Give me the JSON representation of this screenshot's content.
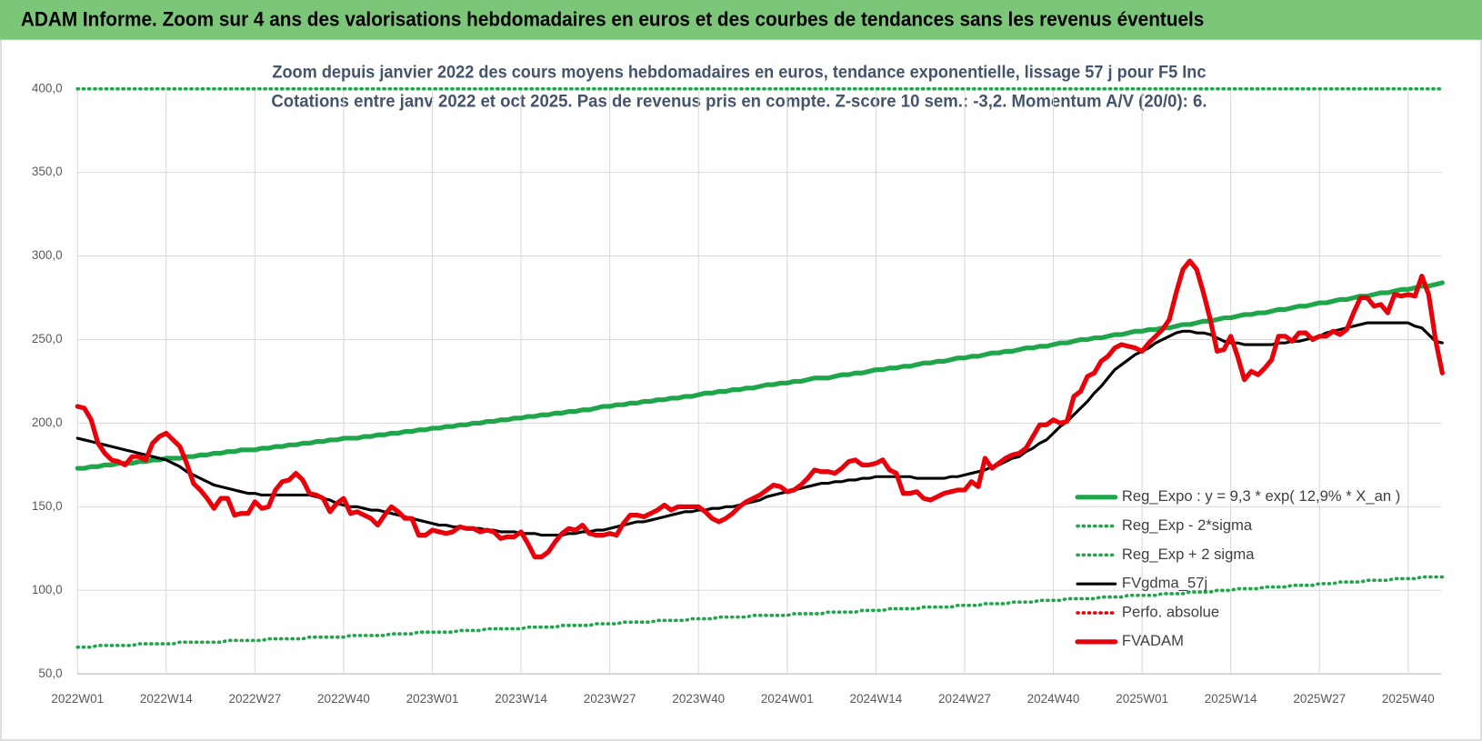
{
  "header": {
    "title": "ADAM Informe. Zoom sur 4 ans des valorisations hebdomadaires en euros et des courbes de tendances sans les revenus éventuels"
  },
  "chart_data": {
    "type": "line",
    "title": "Zoom depuis janvier 2022 des cours moyens hebdomadaires en euros, tendance exponentielle, lissage 57 j pour F5 Inc",
    "subtitle": "Cotations entre janv 2022 et oct 2025. Pas de revenus pris en compte. Z-score 10 sem.: -3,2.  Momentum A/V (20/0): 6.",
    "grid": true,
    "legend": "lower right",
    "ylim": [
      50,
      400
    ],
    "yticks": [
      {
        "value": 50,
        "label": "50,0"
      },
      {
        "value": 100,
        "label": "100,0"
      },
      {
        "value": 150,
        "label": "150,0"
      },
      {
        "value": 200,
        "label": "200,0"
      },
      {
        "value": 250,
        "label": "250,0"
      },
      {
        "value": 300,
        "label": "300,0"
      },
      {
        "value": 350,
        "label": "350,0"
      },
      {
        "value": 400,
        "label": "400,0"
      }
    ],
    "categories": [
      "2022W01",
      null,
      null,
      null,
      null,
      null,
      null,
      null,
      null,
      null,
      null,
      null,
      null,
      "2022W14",
      null,
      null,
      null,
      null,
      null,
      null,
      null,
      null,
      null,
      null,
      null,
      null,
      "2022W27",
      null,
      null,
      null,
      null,
      null,
      null,
      null,
      null,
      null,
      null,
      null,
      null,
      "2022W40",
      null,
      null,
      null,
      null,
      null,
      null,
      null,
      null,
      null,
      null,
      null,
      null,
      "2023W01",
      null,
      null,
      null,
      null,
      null,
      null,
      null,
      null,
      null,
      null,
      null,
      null,
      "2023W14",
      null,
      null,
      null,
      null,
      null,
      null,
      null,
      null,
      null,
      null,
      null,
      null,
      "2023W27",
      null,
      null,
      null,
      null,
      null,
      null,
      null,
      null,
      null,
      null,
      null,
      null,
      "2023W40",
      null,
      null,
      null,
      null,
      null,
      null,
      null,
      null,
      null,
      null,
      null,
      null,
      "2024W01",
      null,
      null,
      null,
      null,
      null,
      null,
      null,
      null,
      null,
      null,
      null,
      null,
      "2024W14",
      null,
      null,
      null,
      null,
      null,
      null,
      null,
      null,
      null,
      null,
      null,
      null,
      "2024W27",
      null,
      null,
      null,
      null,
      null,
      null,
      null,
      null,
      null,
      null,
      null,
      null,
      "2024W40",
      null,
      null,
      null,
      null,
      null,
      null,
      null,
      null,
      null,
      null,
      null,
      null,
      "2025W01",
      null,
      null,
      null,
      null,
      null,
      null,
      null,
      null,
      null,
      null,
      null,
      null,
      "2025W14",
      null,
      null,
      null,
      null,
      null,
      null,
      null,
      null,
      null,
      null,
      null,
      null,
      "2025W27",
      null,
      null,
      null,
      null,
      null,
      null,
      null,
      null,
      null,
      null,
      null,
      null,
      "2025W40",
      null,
      null,
      null,
      null,
      null
    ],
    "series": [
      {
        "name": "Reg_Expo : y = 9,3 * exp( 12,9% * X_an )",
        "color": "#1fa64a",
        "style": "solid",
        "values": [
          173,
          173,
          174,
          174,
          175,
          175,
          176,
          176,
          176,
          177,
          177,
          178,
          178,
          179,
          179,
          179,
          180,
          180,
          181,
          181,
          182,
          182,
          183,
          183,
          184,
          184,
          184,
          185,
          185,
          186,
          186,
          187,
          187,
          188,
          188,
          189,
          189,
          190,
          190,
          191,
          191,
          191,
          192,
          192,
          193,
          193,
          194,
          194,
          195,
          195,
          196,
          196,
          197,
          197,
          198,
          198,
          199,
          199,
          200,
          200,
          201,
          201,
          202,
          202,
          203,
          203,
          204,
          204,
          205,
          205,
          206,
          206,
          207,
          207,
          208,
          208,
          209,
          210,
          210,
          211,
          211,
          212,
          212,
          213,
          213,
          214,
          214,
          215,
          215,
          216,
          216,
          217,
          218,
          218,
          219,
          219,
          220,
          220,
          221,
          221,
          222,
          223,
          223,
          224,
          224,
          225,
          225,
          226,
          227,
          227,
          227,
          228,
          229,
          229,
          230,
          230,
          231,
          232,
          232,
          233,
          233,
          234,
          234,
          235,
          236,
          236,
          237,
          237,
          238,
          239,
          239,
          240,
          240,
          241,
          242,
          242,
          243,
          243,
          244,
          245,
          245,
          246,
          246,
          247,
          248,
          248,
          249,
          250,
          250,
          251,
          251,
          252,
          253,
          253,
          254,
          255,
          255,
          256,
          256,
          257,
          257,
          258,
          259,
          259,
          260,
          261,
          261,
          262,
          263,
          263,
          264,
          265,
          265,
          266,
          266,
          267,
          268,
          268,
          269,
          270,
          270,
          271,
          272,
          272,
          273,
          274,
          274,
          275,
          276,
          276,
          277,
          278,
          278,
          279,
          280,
          280,
          281,
          282,
          282,
          283,
          284
        ]
      },
      {
        "name": "Reg_Exp - 2*sigma",
        "color": "#1fa64a",
        "style": "dotted",
        "values": [
          66,
          66,
          66,
          67,
          67,
          67,
          67,
          67,
          67,
          68,
          68,
          68,
          68,
          68,
          68,
          69,
          69,
          69,
          69,
          69,
          69,
          69,
          70,
          70,
          70,
          70,
          70,
          70,
          71,
          71,
          71,
          71,
          71,
          71,
          72,
          72,
          72,
          72,
          72,
          72,
          73,
          73,
          73,
          73,
          73,
          73,
          74,
          74,
          74,
          74,
          75,
          75,
          75,
          75,
          75,
          75,
          76,
          76,
          76,
          76,
          77,
          77,
          77,
          77,
          77,
          77,
          78,
          78,
          78,
          78,
          78,
          79,
          79,
          79,
          79,
          79,
          80,
          80,
          80,
          80,
          81,
          81,
          81,
          81,
          81,
          82,
          82,
          82,
          82,
          82,
          83,
          83,
          83,
          83,
          84,
          84,
          84,
          84,
          84,
          85,
          85,
          85,
          85,
          85,
          85,
          86,
          86,
          86,
          86,
          86,
          87,
          87,
          87,
          87,
          87,
          88,
          88,
          88,
          88,
          89,
          89,
          89,
          89,
          89,
          90,
          90,
          90,
          90,
          90,
          91,
          91,
          91,
          91,
          92,
          92,
          92,
          92,
          93,
          93,
          93,
          93,
          94,
          94,
          94,
          94,
          95,
          95,
          95,
          95,
          95,
          96,
          96,
          96,
          96,
          97,
          97,
          97,
          97,
          97,
          98,
          98,
          98,
          98,
          99,
          99,
          99,
          99,
          100,
          100,
          100,
          101,
          101,
          101,
          101,
          102,
          102,
          102,
          102,
          103,
          103,
          103,
          103,
          104,
          104,
          104,
          105,
          105,
          105,
          105,
          106,
          106,
          106,
          106,
          107,
          107,
          107,
          107,
          108,
          108,
          108,
          108
        ]
      },
      {
        "name": "Reg_Exp + 2 sigma",
        "color": "#1fa64a",
        "style": "dotted",
        "values": [
          400,
          400,
          400,
          400,
          400,
          400,
          400,
          400,
          400,
          400,
          400,
          400,
          400,
          400,
          400,
          400,
          400,
          400,
          400,
          400,
          400,
          400,
          400,
          400,
          400,
          400,
          400,
          400,
          400,
          400,
          400,
          400,
          400,
          400,
          400,
          400,
          400,
          400,
          400,
          400,
          400,
          400,
          400,
          400,
          400,
          400,
          400,
          400,
          400,
          400,
          400,
          400,
          400,
          400,
          400,
          400,
          400,
          400,
          400,
          400,
          400,
          400,
          400,
          400,
          400,
          400,
          400,
          400,
          400,
          400,
          400,
          400,
          400,
          400,
          400,
          400,
          400,
          400,
          400,
          400,
          400,
          400,
          400,
          400,
          400,
          400,
          400,
          400,
          400,
          400,
          400,
          400,
          400,
          400,
          400,
          400,
          400,
          400,
          400,
          400,
          400,
          400,
          400,
          400,
          400,
          400,
          400,
          400,
          400,
          400,
          400,
          400,
          400,
          400,
          400,
          400,
          400,
          400,
          400,
          400,
          400,
          400,
          400,
          400,
          400,
          400,
          400,
          400,
          400,
          400,
          400,
          400,
          400,
          400,
          400,
          400,
          400,
          400,
          400,
          400,
          400,
          400,
          400,
          400,
          400,
          400,
          400,
          400,
          400,
          400,
          400,
          400,
          400,
          400,
          400,
          400,
          400,
          400,
          400,
          400,
          400,
          400,
          400,
          400,
          400,
          400,
          400,
          400,
          400,
          400,
          400,
          400,
          400,
          400,
          400,
          400,
          400,
          400,
          400,
          400,
          400,
          400,
          400,
          400,
          400,
          400,
          400,
          400,
          400,
          400,
          400,
          400,
          400,
          400,
          400,
          400,
          400,
          400,
          400,
          400,
          400
        ]
      },
      {
        "name": "FVgdma_57j",
        "color": "#000000",
        "style": "solid",
        "values": [
          191,
          190,
          189,
          188,
          187,
          186,
          185,
          184,
          183,
          182,
          181,
          180,
          179,
          178,
          176,
          174,
          171,
          169,
          167,
          165,
          163,
          162,
          161,
          160,
          159,
          158,
          158,
          157,
          157,
          157,
          157,
          157,
          157,
          157,
          157,
          156,
          155,
          154,
          152,
          151,
          150,
          150,
          149,
          148,
          148,
          147,
          146,
          145,
          144,
          143,
          142,
          141,
          140,
          139,
          139,
          138,
          138,
          137,
          137,
          137,
          136,
          136,
          135,
          135,
          135,
          134,
          134,
          134,
          133,
          133,
          133,
          133,
          134,
          134,
          135,
          135,
          136,
          136,
          137,
          138,
          139,
          140,
          141,
          141,
          142,
          143,
          144,
          145,
          146,
          147,
          147,
          148,
          148,
          149,
          149,
          150,
          150,
          151,
          152,
          153,
          154,
          156,
          157,
          158,
          159,
          160,
          161,
          162,
          163,
          164,
          164,
          165,
          165,
          166,
          166,
          167,
          167,
          168,
          168,
          168,
          168,
          168,
          168,
          167,
          167,
          167,
          167,
          167,
          168,
          168,
          169,
          170,
          171,
          172,
          174,
          175,
          177,
          179,
          180,
          183,
          185,
          188,
          190,
          194,
          198,
          201,
          205,
          209,
          213,
          218,
          222,
          227,
          232,
          235,
          238,
          241,
          243,
          245,
          248,
          250,
          252,
          254,
          255,
          255,
          254,
          254,
          253,
          251,
          249,
          248,
          248,
          247,
          247,
          247,
          247,
          247,
          248,
          248,
          249,
          249,
          250,
          251,
          252,
          254,
          255,
          256,
          257,
          258,
          259,
          260,
          260,
          260,
          260,
          260,
          260,
          260,
          258,
          257,
          253,
          249,
          248
        ]
      },
      {
        "name": "Perfo. absolue",
        "color": "#e8000b",
        "style": "dotted"
      },
      {
        "name": "FVADAM",
        "color": "#e8000b",
        "style": "solid",
        "values": [
          210,
          209,
          202,
          188,
          182,
          178,
          177,
          175,
          180,
          180,
          178,
          188,
          192,
          194,
          190,
          186,
          176,
          164,
          160,
          155,
          149,
          155,
          155,
          145,
          146,
          146,
          153,
          149,
          150,
          160,
          165,
          166,
          170,
          166,
          158,
          157,
          155,
          147,
          152,
          155,
          146,
          147,
          145,
          143,
          139,
          145,
          150,
          147,
          143,
          143,
          133,
          133,
          136,
          135,
          134,
          135,
          138,
          137,
          137,
          135,
          136,
          135,
          131,
          132,
          132,
          135,
          128,
          120,
          120,
          123,
          129,
          134,
          137,
          136,
          139,
          134,
          133,
          133,
          134,
          133,
          140,
          145,
          145,
          144,
          146,
          148,
          151,
          148,
          150,
          150,
          150,
          150,
          147,
          143,
          141,
          143,
          146,
          150,
          153,
          155,
          157,
          160,
          163,
          162,
          159,
          160,
          163,
          167,
          172,
          171,
          171,
          170,
          173,
          177,
          178,
          175,
          175,
          176,
          178,
          172,
          170,
          158,
          158,
          159,
          155,
          154,
          156,
          158,
          159,
          160,
          160,
          165,
          162,
          179,
          173,
          176,
          179,
          181,
          182,
          185,
          192,
          199,
          199,
          202,
          200,
          201,
          216,
          219,
          228,
          230,
          237,
          240,
          245,
          247,
          246,
          245,
          243,
          248,
          252,
          256,
          262,
          278,
          292,
          297,
          292,
          278,
          262,
          243,
          244,
          252,
          240,
          226,
          231,
          229,
          233,
          238,
          252,
          252,
          249,
          254,
          254,
          250,
          252,
          252,
          255,
          253,
          256,
          266,
          275,
          275,
          270,
          271,
          266,
          277,
          276,
          277,
          276,
          288,
          277,
          250,
          230
        ]
      }
    ]
  }
}
